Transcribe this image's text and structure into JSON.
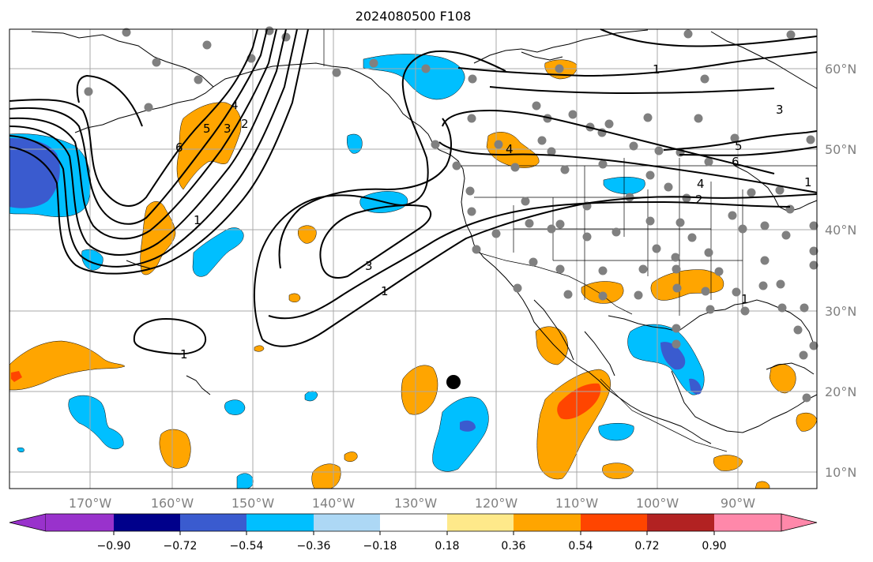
{
  "title": "2024080500 F108",
  "map": {
    "lon_labels": [
      "170°W",
      "160°W",
      "150°W",
      "140°W",
      "130°W",
      "120°W",
      "110°W",
      "100°W",
      "90°W"
    ],
    "lat_labels": [
      "60°N",
      "50°N",
      "40°N",
      "30°N",
      "20°N",
      "10°N"
    ]
  },
  "colorbar": {
    "colors": [
      "#9932cc",
      "#00008b",
      "#3a5bcf",
      "#00bfff",
      "#add8f5",
      "#ffffff",
      "#fee98a",
      "#ffa500",
      "#ff4500",
      "#b22222",
      "#ff88aa"
    ],
    "ticks": [
      "−0.90",
      "−0.72",
      "−0.54",
      "−0.36",
      "−0.18",
      "0.18",
      "0.36",
      "0.54",
      "0.72",
      "0.90"
    ]
  },
  "contour_labels": [
    "1",
    "2",
    "3",
    "4",
    "5",
    "6",
    "1",
    "3",
    "1",
    "1",
    "4",
    "1",
    "3",
    "5",
    "6",
    "4",
    "2",
    "1"
  ],
  "stations_color": "#808080",
  "marker_color": "#000000"
}
